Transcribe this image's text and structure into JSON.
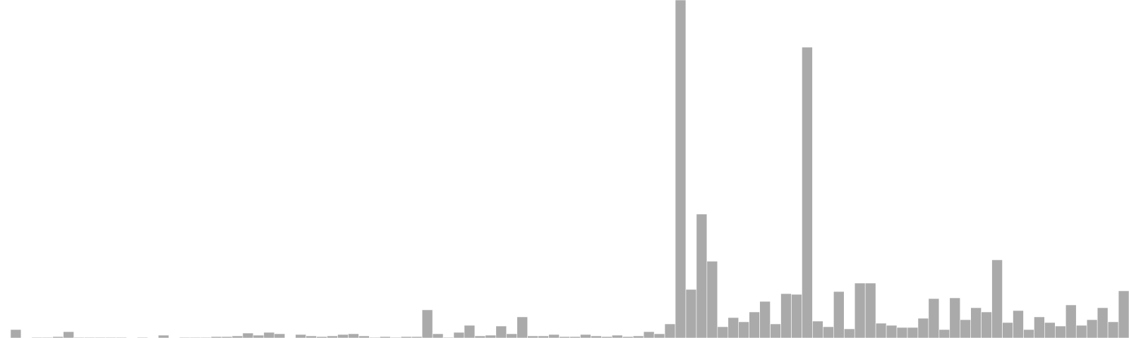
{
  "colors": {
    "bar": "#aaaaaa",
    "background": "#ffffff"
  },
  "chart_data": {
    "type": "bar",
    "title": "",
    "xlabel": "",
    "ylabel": "",
    "grid": false,
    "legend": "none",
    "ylim": [
      0,
      480
    ],
    "values": [
      0,
      12,
      0,
      1,
      1,
      2,
      9,
      1,
      1,
      1,
      1,
      1,
      0,
      1,
      0,
      4,
      0,
      1,
      1,
      1,
      2,
      2,
      3,
      7,
      4,
      8,
      6,
      0,
      5,
      3,
      2,
      3,
      5,
      6,
      3,
      1,
      2,
      1,
      2,
      2,
      40,
      6,
      1,
      8,
      18,
      3,
      4,
      17,
      6,
      30,
      3,
      3,
      5,
      2,
      2,
      5,
      3,
      2,
      4,
      2,
      3,
      9,
      6,
      20,
      480,
      69,
      176,
      109,
      16,
      29,
      23,
      37,
      52,
      20,
      63,
      62,
      413,
      24,
      16,
      66,
      13,
      78,
      78,
      21,
      18,
      15,
      15,
      28,
      56,
      12,
      57,
      26,
      43,
      37,
      111,
      22,
      39,
      12,
      30,
      22,
      17,
      47,
      18,
      26,
      43,
      23,
      67
    ]
  }
}
